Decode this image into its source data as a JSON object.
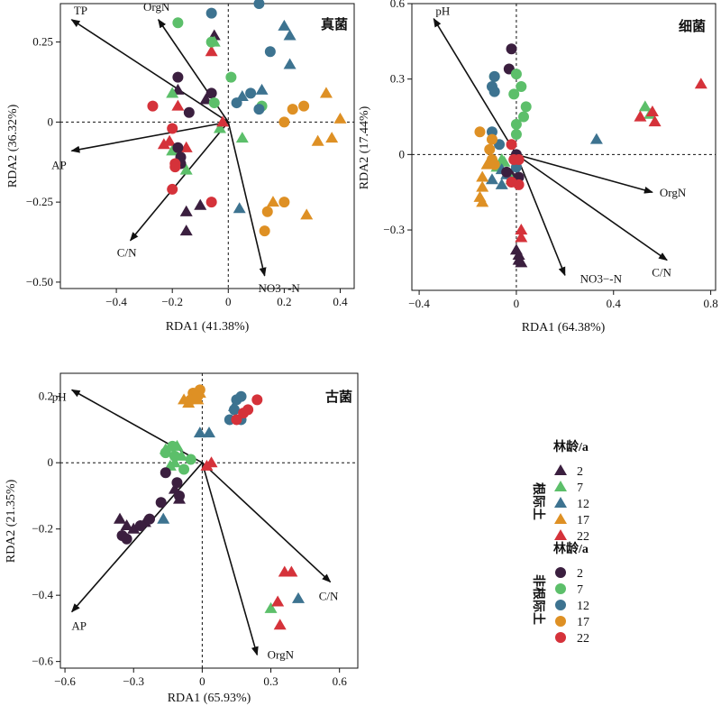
{
  "chart_data": [
    {
      "type": "scatter",
      "title": "真菌",
      "xlabel": "RDA1 (41.38%)",
      "ylabel": "RDA2 (36.32%)",
      "xlim": [
        -0.6,
        0.45
      ],
      "ylim": [
        -0.52,
        0.37
      ],
      "xticks": [
        -0.4,
        -0.2,
        0,
        0.2,
        0.4
      ],
      "xtick_labels": [
        "−0.4",
        "−0.2",
        "0",
        "0.2",
        "0.4"
      ],
      "yticks": [
        -0.5,
        -0.25,
        0,
        0.25
      ],
      "ytick_labels": [
        "−0.50",
        "−0.25",
        "0",
        "0.25"
      ],
      "vectors": [
        {
          "name": "TP",
          "x": -0.56,
          "y": 0.32
        },
        {
          "name": "OrgN",
          "x": -0.25,
          "y": 0.32
        },
        {
          "name": "AP",
          "x": -0.56,
          "y": -0.09
        },
        {
          "name": "C/N",
          "x": -0.35,
          "y": -0.37
        },
        {
          "name": "NO3−-N",
          "x": 0.13,
          "y": -0.48
        }
      ],
      "points": {
        "root_2": [
          [
            -0.05,
            0.27
          ],
          [
            -0.08,
            0.07
          ],
          [
            -0.1,
            -0.26
          ],
          [
            -0.15,
            -0.28
          ],
          [
            -0.15,
            -0.34
          ],
          [
            -0.18,
            0.1
          ]
        ],
        "root_7": [
          [
            -0.05,
            0.25
          ],
          [
            -0.2,
            0.09
          ],
          [
            -0.03,
            -0.02
          ],
          [
            0.05,
            -0.05
          ],
          [
            -0.15,
            -0.15
          ],
          [
            -0.2,
            -0.09
          ]
        ],
        "root_12": [
          [
            0.2,
            0.3
          ],
          [
            0.22,
            0.27
          ],
          [
            0.12,
            0.1
          ],
          [
            0.04,
            -0.27
          ],
          [
            0.22,
            0.18
          ],
          [
            0.05,
            0.08
          ]
        ],
        "root_17": [
          [
            0.35,
            0.09
          ],
          [
            0.4,
            0.01
          ],
          [
            0.32,
            -0.06
          ],
          [
            0.37,
            -0.05
          ],
          [
            0.28,
            -0.29
          ],
          [
            0.16,
            -0.25
          ]
        ],
        "root_22": [
          [
            -0.06,
            0.22
          ],
          [
            -0.18,
            0.05
          ],
          [
            -0.23,
            -0.07
          ],
          [
            -0.21,
            -0.06
          ],
          [
            -0.02,
            0.0
          ],
          [
            -0.15,
            -0.08
          ]
        ],
        "nonroot_2": [
          [
            -0.18,
            0.14
          ],
          [
            -0.14,
            0.03
          ],
          [
            -0.18,
            -0.08
          ],
          [
            -0.17,
            -0.11
          ],
          [
            -0.17,
            -0.13
          ],
          [
            -0.06,
            0.09
          ]
        ],
        "nonroot_7": [
          [
            -0.18,
            0.31
          ],
          [
            -0.06,
            0.25
          ],
          [
            0.01,
            0.14
          ],
          [
            -0.05,
            0.06
          ],
          [
            0.12,
            0.05
          ]
        ],
        "nonroot_12": [
          [
            -0.06,
            0.34
          ],
          [
            0.11,
            0.37
          ],
          [
            0.15,
            0.22
          ],
          [
            0.08,
            0.09
          ],
          [
            0.11,
            0.04
          ],
          [
            0.03,
            0.06
          ]
        ],
        "nonroot_17": [
          [
            0.2,
            0.0
          ],
          [
            0.27,
            0.05
          ],
          [
            0.23,
            0.04
          ],
          [
            0.2,
            -0.25
          ],
          [
            0.14,
            -0.28
          ],
          [
            0.13,
            -0.34
          ]
        ],
        "nonroot_22": [
          [
            -0.27,
            0.05
          ],
          [
            -0.2,
            -0.02
          ],
          [
            -0.19,
            -0.13
          ],
          [
            -0.06,
            -0.25
          ],
          [
            -0.2,
            -0.21
          ],
          [
            -0.19,
            -0.14
          ]
        ]
      }
    },
    {
      "type": "scatter",
      "title": "细菌",
      "xlabel": "RDA1 (64.38%)",
      "ylabel": "RDA2 (17.44%)",
      "xlim": [
        -0.43,
        0.82
      ],
      "ylim": [
        -0.54,
        0.6
      ],
      "xticks": [
        -0.4,
        0,
        0.4,
        0.8
      ],
      "xtick_labels": [
        "−0.4",
        "0",
        "0.4",
        "0.8"
      ],
      "yticks": [
        -0.3,
        0,
        0.3,
        0.6
      ],
      "ytick_labels": [
        "−0.3",
        "0",
        "0.3",
        "0.6"
      ],
      "vectors": [
        {
          "name": "pH",
          "x": -0.34,
          "y": 0.54
        },
        {
          "name": "OrgN",
          "x": 0.56,
          "y": -0.15
        },
        {
          "name": "C/N",
          "x": 0.62,
          "y": -0.42
        },
        {
          "name": "NO3−-N",
          "x": 0.2,
          "y": -0.48
        }
      ],
      "points": {
        "root_2": [
          [
            0.0,
            -0.38
          ],
          [
            0.01,
            -0.4
          ],
          [
            0.02,
            -0.43
          ],
          [
            0.01,
            -0.42
          ],
          [
            -0.02,
            -0.08
          ],
          [
            0.0,
            -0.1
          ]
        ],
        "root_7": [
          [
            -0.06,
            -0.02
          ],
          [
            -0.08,
            -0.05
          ],
          [
            -0.02,
            -0.1
          ],
          [
            0.53,
            0.19
          ],
          [
            0.55,
            0.16
          ],
          [
            -0.05,
            -0.03
          ]
        ],
        "root_12": [
          [
            0.33,
            0.06
          ],
          [
            -0.06,
            -0.06
          ],
          [
            -0.04,
            -0.08
          ],
          [
            -0.1,
            -0.1
          ],
          [
            -0.06,
            -0.12
          ]
        ],
        "root_17": [
          [
            -0.14,
            -0.13
          ],
          [
            -0.15,
            -0.17
          ],
          [
            -0.14,
            -0.19
          ],
          [
            -0.12,
            -0.04
          ],
          [
            -0.14,
            -0.09
          ]
        ],
        "root_22": [
          [
            0.76,
            0.28
          ],
          [
            0.56,
            0.17
          ],
          [
            0.51,
            0.15
          ],
          [
            0.57,
            0.13
          ],
          [
            0.02,
            -0.3
          ],
          [
            0.02,
            -0.33
          ]
        ],
        "nonroot_2": [
          [
            -0.02,
            0.42
          ],
          [
            -0.03,
            0.34
          ],
          [
            0.0,
            0.0
          ],
          [
            0.01,
            -0.09
          ],
          [
            -0.04,
            -0.07
          ]
        ],
        "nonroot_7": [
          [
            -0.09,
            0.31
          ],
          [
            0.0,
            0.32
          ],
          [
            0.02,
            0.27
          ],
          [
            -0.01,
            0.24
          ],
          [
            0.04,
            0.19
          ],
          [
            0.03,
            0.15
          ],
          [
            0.0,
            0.12
          ],
          [
            0.0,
            0.08
          ]
        ],
        "nonroot_12": [
          [
            -0.09,
            0.31
          ],
          [
            -0.1,
            0.27
          ],
          [
            -0.09,
            0.25
          ],
          [
            -0.1,
            0.09
          ],
          [
            -0.07,
            0.04
          ],
          [
            0.0,
            -0.05
          ]
        ],
        "nonroot_17": [
          [
            -0.15,
            0.09
          ],
          [
            -0.1,
            0.06
          ],
          [
            -0.11,
            0.02
          ],
          [
            -0.1,
            -0.02
          ],
          [
            -0.09,
            -0.04
          ]
        ],
        "nonroot_22": [
          [
            -0.02,
            -0.11
          ],
          [
            0.01,
            -0.12
          ],
          [
            -0.02,
            0.04
          ],
          [
            0.01,
            -0.02
          ],
          [
            -0.01,
            -0.02
          ]
        ]
      }
    },
    {
      "type": "scatter",
      "title": "古菌",
      "xlabel": "RDA1 (65.93%)",
      "ylabel": "RDA2 (21.35%)",
      "xlim": [
        -0.62,
        0.68
      ],
      "ylim": [
        -0.62,
        0.27
      ],
      "xticks": [
        -0.6,
        -0.3,
        0,
        0.3,
        0.6
      ],
      "xtick_labels": [
        "−0.6",
        "−0.3",
        "0",
        "0.3",
        "0.6"
      ],
      "yticks": [
        -0.6,
        -0.4,
        -0.2,
        0,
        0.2
      ],
      "ytick_labels": [
        "−0.6",
        "−0.4",
        "−0.2",
        "0",
        "0.2"
      ],
      "vectors": [
        {
          "name": "pH",
          "x": -0.57,
          "y": 0.22
        },
        {
          "name": "AP",
          "x": -0.57,
          "y": -0.45
        },
        {
          "name": "OrgN",
          "x": 0.24,
          "y": -0.58
        },
        {
          "name": "C/N",
          "x": 0.56,
          "y": -0.36
        }
      ],
      "points": {
        "root_2": [
          [
            -0.36,
            -0.17
          ],
          [
            -0.33,
            -0.19
          ],
          [
            -0.3,
            -0.2
          ],
          [
            -0.25,
            -0.18
          ],
          [
            -0.12,
            -0.08
          ],
          [
            -0.1,
            -0.11
          ]
        ],
        "root_7": [
          [
            -0.16,
            0.04
          ],
          [
            -0.11,
            0.05
          ],
          [
            -0.09,
            0.02
          ],
          [
            0.3,
            -0.44
          ],
          [
            -0.12,
            0.0
          ],
          [
            -0.14,
            -0.01
          ]
        ],
        "root_12": [
          [
            0.42,
            -0.41
          ],
          [
            -0.17,
            -0.17
          ],
          [
            -0.01,
            0.09
          ],
          [
            0.03,
            0.09
          ],
          [
            0.14,
            0.17
          ]
        ],
        "root_17": [
          [
            -0.08,
            0.19
          ],
          [
            -0.04,
            0.2
          ],
          [
            -0.01,
            0.21
          ],
          [
            -0.06,
            0.18
          ],
          [
            -0.02,
            0.19
          ]
        ],
        "root_22": [
          [
            0.36,
            -0.33
          ],
          [
            0.39,
            -0.33
          ],
          [
            0.33,
            -0.42
          ],
          [
            0.34,
            -0.49
          ],
          [
            0.04,
            0.0
          ],
          [
            0.02,
            -0.01
          ]
        ],
        "nonroot_2": [
          [
            -0.16,
            -0.03
          ],
          [
            -0.11,
            -0.06
          ],
          [
            -0.1,
            -0.1
          ],
          [
            -0.18,
            -0.12
          ],
          [
            -0.23,
            -0.17
          ],
          [
            -0.27,
            -0.19
          ],
          [
            -0.35,
            -0.22
          ],
          [
            -0.33,
            -0.23
          ]
        ],
        "nonroot_7": [
          [
            -0.08,
            -0.02
          ],
          [
            -0.12,
            0.02
          ],
          [
            -0.16,
            0.03
          ],
          [
            -0.05,
            0.01
          ],
          [
            -0.13,
            0.05
          ]
        ],
        "nonroot_12": [
          [
            0.14,
            0.16
          ],
          [
            0.15,
            0.19
          ],
          [
            0.17,
            0.2
          ],
          [
            0.12,
            0.13
          ],
          [
            0.17,
            0.13
          ]
        ],
        "nonroot_17": [
          [
            -0.04,
            0.21
          ],
          [
            -0.01,
            0.22
          ],
          [
            -0.05,
            0.19
          ],
          [
            -0.02,
            0.2
          ]
        ],
        "nonroot_22": [
          [
            0.24,
            0.19
          ],
          [
            0.2,
            0.16
          ],
          [
            0.18,
            0.15
          ],
          [
            0.15,
            0.13
          ]
        ]
      }
    }
  ],
  "legend": {
    "group_root": "根际土",
    "group_nonroot": "非根际土",
    "title_root": "林龄/a",
    "title_nonroot": "林龄/a",
    "root_items": [
      {
        "key": "root_2",
        "label": "2",
        "color": "#3b1f3f",
        "shape": "triangle"
      },
      {
        "key": "root_7",
        "label": "7",
        "color": "#5cbf6a",
        "shape": "triangle"
      },
      {
        "key": "root_12",
        "label": "12",
        "color": "#3d7390",
        "shape": "triangle"
      },
      {
        "key": "root_17",
        "label": "17",
        "color": "#de9024",
        "shape": "triangle"
      },
      {
        "key": "root_22",
        "label": "22",
        "color": "#d5323a",
        "shape": "triangle"
      }
    ],
    "nonroot_items": [
      {
        "key": "nonroot_2",
        "label": "2",
        "color": "#3b1f3f",
        "shape": "circle"
      },
      {
        "key": "nonroot_7",
        "label": "7",
        "color": "#5cbf6a",
        "shape": "circle"
      },
      {
        "key": "nonroot_12",
        "label": "12",
        "color": "#3d7390",
        "shape": "circle"
      },
      {
        "key": "nonroot_17",
        "label": "17",
        "color": "#de9024",
        "shape": "circle"
      },
      {
        "key": "nonroot_22",
        "label": "22",
        "color": "#d5323a",
        "shape": "circle"
      }
    ]
  }
}
